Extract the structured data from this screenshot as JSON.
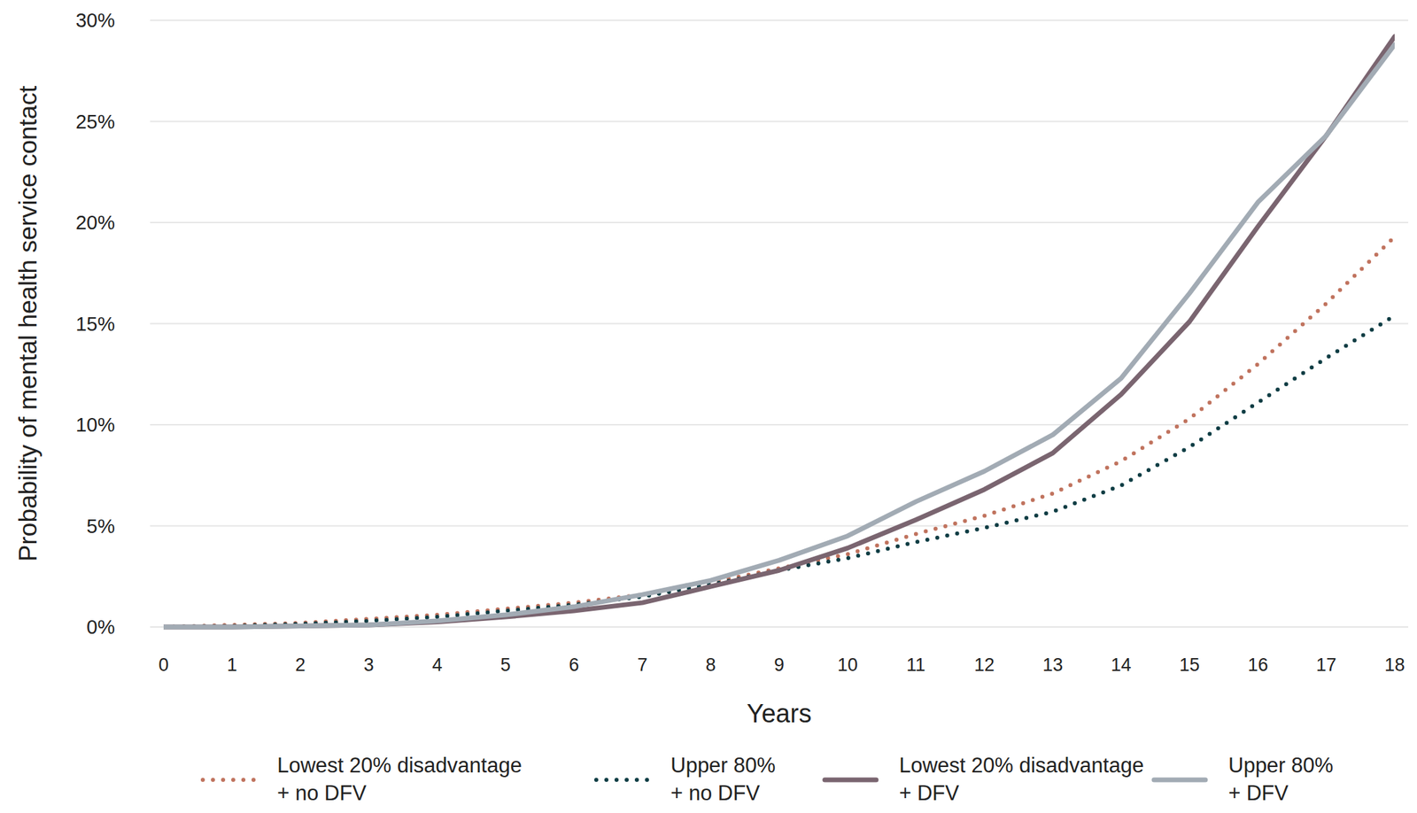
{
  "chart_data": {
    "type": "line",
    "x_label": "Years",
    "y_label": "Probability of mental health service contact",
    "x": [
      0,
      1,
      2,
      3,
      4,
      5,
      6,
      7,
      8,
      9,
      10,
      11,
      12,
      13,
      14,
      15,
      16,
      17,
      18
    ],
    "xlim": [
      0,
      18
    ],
    "xticks": [
      0,
      1,
      2,
      3,
      4,
      5,
      6,
      7,
      8,
      9,
      10,
      11,
      12,
      13,
      14,
      15,
      16,
      17,
      18
    ],
    "ylim": [
      0,
      30
    ],
    "yticks": [
      {
        "value": 0,
        "label": "0%"
      },
      {
        "value": 5,
        "label": "5%"
      },
      {
        "value": 10,
        "label": "10%"
      },
      {
        "value": 15,
        "label": "15%"
      },
      {
        "value": 20,
        "label": "20%"
      },
      {
        "value": 25,
        "label": "25%"
      },
      {
        "value": 30,
        "label": "30%"
      }
    ],
    "grid": true,
    "legend": "bottom",
    "series": [
      {
        "name": "Lowest 20% disadvantage + no DFV",
        "color": "#c0735e",
        "line_style": "dotted",
        "values": [
          0,
          0.1,
          0.2,
          0.4,
          0.6,
          0.9,
          1.2,
          1.6,
          2.2,
          2.9,
          3.6,
          4.6,
          5.5,
          6.6,
          8.2,
          10.3,
          13.0,
          16.0,
          19.3
        ]
      },
      {
        "name": "Upper 80% + no DFV",
        "color": "#0f3d44",
        "line_style": "dotted",
        "values": [
          0,
          0.05,
          0.15,
          0.3,
          0.5,
          0.8,
          1.1,
          1.5,
          2.1,
          2.8,
          3.4,
          4.2,
          4.9,
          5.7,
          7.0,
          8.9,
          11.1,
          13.3,
          15.4
        ]
      },
      {
        "name": "Lowest 20% disadvantage + DFV",
        "color": "#7a6570",
        "line_style": "solid",
        "values": [
          0,
          0,
          0.05,
          0.1,
          0.25,
          0.5,
          0.8,
          1.2,
          2.0,
          2.8,
          3.9,
          5.3,
          6.8,
          8.6,
          11.5,
          15.1,
          19.8,
          24.3,
          29.2
        ]
      },
      {
        "name": "Upper 80% + DFV",
        "color": "#a2abb4",
        "line_style": "solid",
        "values": [
          0,
          0,
          0.05,
          0.1,
          0.3,
          0.6,
          1.0,
          1.6,
          2.3,
          3.3,
          4.5,
          6.2,
          7.7,
          9.5,
          12.3,
          16.5,
          21.0,
          24.3,
          28.8
        ]
      }
    ]
  }
}
